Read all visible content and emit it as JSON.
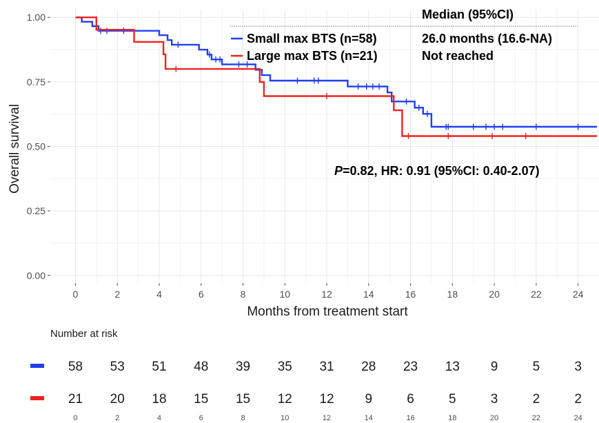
{
  "chart_data": {
    "type": "line",
    "subtype": "kaplan-meier",
    "xlabel": "Months from treatment start",
    "ylabel": "Overall survival",
    "xlim": [
      -1.2,
      25
    ],
    "ylim": [
      -0.03,
      1.03
    ],
    "x_ticks": [
      0,
      2,
      4,
      6,
      8,
      10,
      12,
      14,
      16,
      18,
      20,
      22,
      24
    ],
    "y_ticks": [
      0.0,
      0.25,
      0.5,
      0.75,
      1.0
    ],
    "y_tick_labels": [
      "0.00",
      "0.25",
      "0.50",
      "0.75",
      "1.00"
    ],
    "grid": true,
    "legend_header": "Median (95%CI)",
    "series": [
      {
        "name": "Small max BTS (n=58)",
        "median": "26.0 months (16.6-NA)",
        "color": "#1f3ff0",
        "steps": [
          [
            0,
            1.0
          ],
          [
            0.3,
            0.983
          ],
          [
            0.8,
            0.966
          ],
          [
            1.1,
            0.948
          ],
          [
            4.0,
            0.931
          ],
          [
            4.4,
            0.912
          ],
          [
            4.6,
            0.894
          ],
          [
            5.9,
            0.875
          ],
          [
            6.3,
            0.856
          ],
          [
            6.5,
            0.837
          ],
          [
            7.0,
            0.818
          ],
          [
            8.6,
            0.797
          ],
          [
            8.9,
            0.776
          ],
          [
            9.3,
            0.755
          ],
          [
            13.0,
            0.732
          ],
          [
            14.9,
            0.709
          ],
          [
            15.1,
            0.674
          ],
          [
            16.2,
            0.65
          ],
          [
            16.6,
            0.626
          ],
          [
            17.0,
            0.576
          ],
          [
            24.9,
            0.576
          ]
        ],
        "censored": [
          [
            1.2,
            0.948
          ],
          [
            1.5,
            0.948
          ],
          [
            2.3,
            0.948
          ],
          [
            4.9,
            0.894
          ],
          [
            6.4,
            0.856
          ],
          [
            6.7,
            0.837
          ],
          [
            6.9,
            0.837
          ],
          [
            7.8,
            0.818
          ],
          [
            8.2,
            0.818
          ],
          [
            10.6,
            0.755
          ],
          [
            11.4,
            0.755
          ],
          [
            11.6,
            0.755
          ],
          [
            13.5,
            0.732
          ],
          [
            13.9,
            0.732
          ],
          [
            14.2,
            0.732
          ],
          [
            14.5,
            0.732
          ],
          [
            15.8,
            0.674
          ],
          [
            16.4,
            0.65
          ],
          [
            16.8,
            0.626
          ],
          [
            17.7,
            0.576
          ],
          [
            17.8,
            0.576
          ],
          [
            19.0,
            0.576
          ],
          [
            19.6,
            0.576
          ],
          [
            20.0,
            0.576
          ],
          [
            20.4,
            0.576
          ],
          [
            22.0,
            0.576
          ],
          [
            24.0,
            0.576
          ]
        ]
      },
      {
        "name": "Large max BTS (n=21)",
        "median": "Not reached",
        "color": "#f02020",
        "steps": [
          [
            0,
            1.0
          ],
          [
            1.0,
            0.952
          ],
          [
            2.8,
            0.905
          ],
          [
            4.2,
            0.857
          ],
          [
            4.3,
            0.8
          ],
          [
            8.8,
            0.75
          ],
          [
            9.0,
            0.695
          ],
          [
            15.2,
            0.64
          ],
          [
            15.6,
            0.54
          ],
          [
            24.9,
            0.54
          ]
        ],
        "censored": [
          [
            4.8,
            0.8
          ],
          [
            12.0,
            0.695
          ],
          [
            15.9,
            0.54
          ],
          [
            17.8,
            0.54
          ],
          [
            19.9,
            0.54
          ],
          [
            21.5,
            0.54
          ]
        ]
      }
    ],
    "annotation": {
      "p_label": "P",
      "text": "=0.82, HR: 0.91 (95%CI: 0.40-2.07)"
    },
    "risk_table": {
      "title": "Number at risk",
      "times": [
        0,
        2,
        4,
        6,
        8,
        10,
        12,
        14,
        16,
        18,
        20,
        22,
        24
      ],
      "rows": [
        {
          "color": "#1f3ff0",
          "values": [
            58,
            53,
            51,
            48,
            39,
            35,
            31,
            28,
            23,
            13,
            9,
            5,
            3
          ]
        },
        {
          "color": "#f02020",
          "values": [
            21,
            20,
            18,
            15,
            15,
            12,
            12,
            9,
            6,
            5,
            3,
            2,
            2
          ]
        }
      ]
    }
  }
}
